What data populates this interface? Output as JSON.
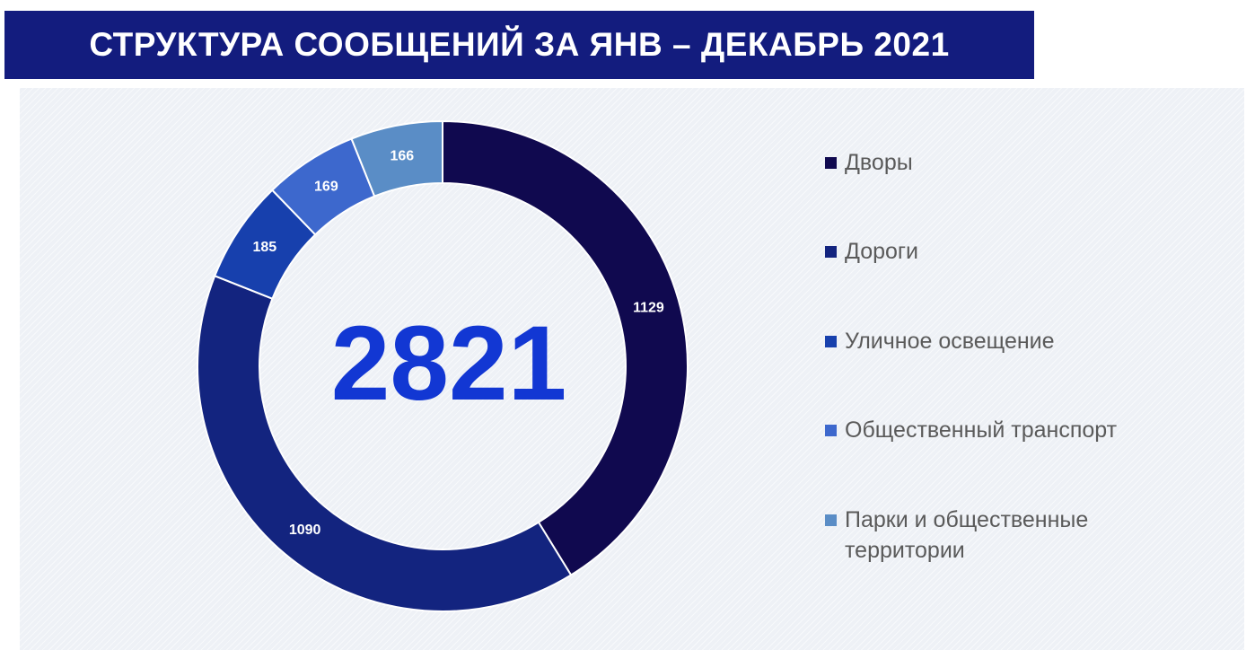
{
  "header": {
    "title": "СТРУКТУРА СООБЩЕНИЙ ЗА ЯНВ – ДЕКАБРЬ 2021",
    "background": "#131c7e"
  },
  "panel_background": "#eef1f6",
  "chart_data": {
    "type": "pie",
    "variant": "donut",
    "center_label": "2821",
    "center_label_color": "#1237d3",
    "categories": [
      "Дворы",
      "Дороги",
      "Уличное освещение",
      "Общественный транспорт",
      "Парки и общественные территории"
    ],
    "values": [
      1129,
      1090,
      185,
      169,
      166
    ],
    "colors": [
      "#10094f",
      "#13247f",
      "#1740ad",
      "#3d68cd",
      "#5a8dc6"
    ],
    "data_labels": [
      "1129",
      "1090",
      "185",
      "169",
      "166"
    ],
    "legend_position": "right"
  }
}
